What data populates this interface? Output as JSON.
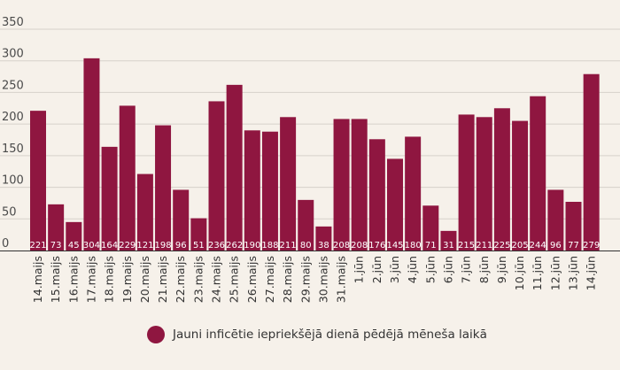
{
  "colors": {
    "bar": "#8f1640",
    "grid": "#d6d1ca",
    "axis": "#333333",
    "background": "#f6f1ea"
  },
  "chart_data": {
    "type": "bar",
    "title": "",
    "xlabel": "",
    "ylabel": "",
    "ylim": [
      0,
      350
    ],
    "yticks": [
      0,
      50,
      100,
      150,
      200,
      250,
      300,
      350
    ],
    "grid": "horizontal",
    "legend_position": "bottom",
    "data_labels": "inside-bottom",
    "categories": [
      "14.maijs",
      "15.maijs",
      "16.maijs",
      "17.maijs",
      "18.maijs",
      "19.maijs",
      "20.maijs",
      "21.maijs",
      "22.maijs",
      "23.maijs",
      "24.maijs",
      "25.maijs",
      "26.maijs",
      "27.maijs",
      "28.maijs",
      "29.maijs",
      "30.maijs",
      "31.maijs",
      "1.jūn",
      "2.jūn",
      "3.jūn",
      "4.jūn",
      "5.jūn",
      "6.jūn",
      "7.jūn",
      "8.jūn",
      "9.jūn",
      "10.jūn",
      "11.jūn",
      "12.jūn",
      "13.jūn",
      "14.jūn"
    ],
    "series": [
      {
        "name": "Jauni inficētie iepriekšējā dienā pēdējā mēneša laikā",
        "values": [
          221,
          73,
          45,
          304,
          164,
          229,
          121,
          198,
          96,
          51,
          236,
          262,
          190,
          188,
          211,
          80,
          38,
          208,
          208,
          176,
          145,
          180,
          71,
          31,
          215,
          211,
          225,
          205,
          244,
          96,
          77,
          279
        ]
      }
    ]
  }
}
